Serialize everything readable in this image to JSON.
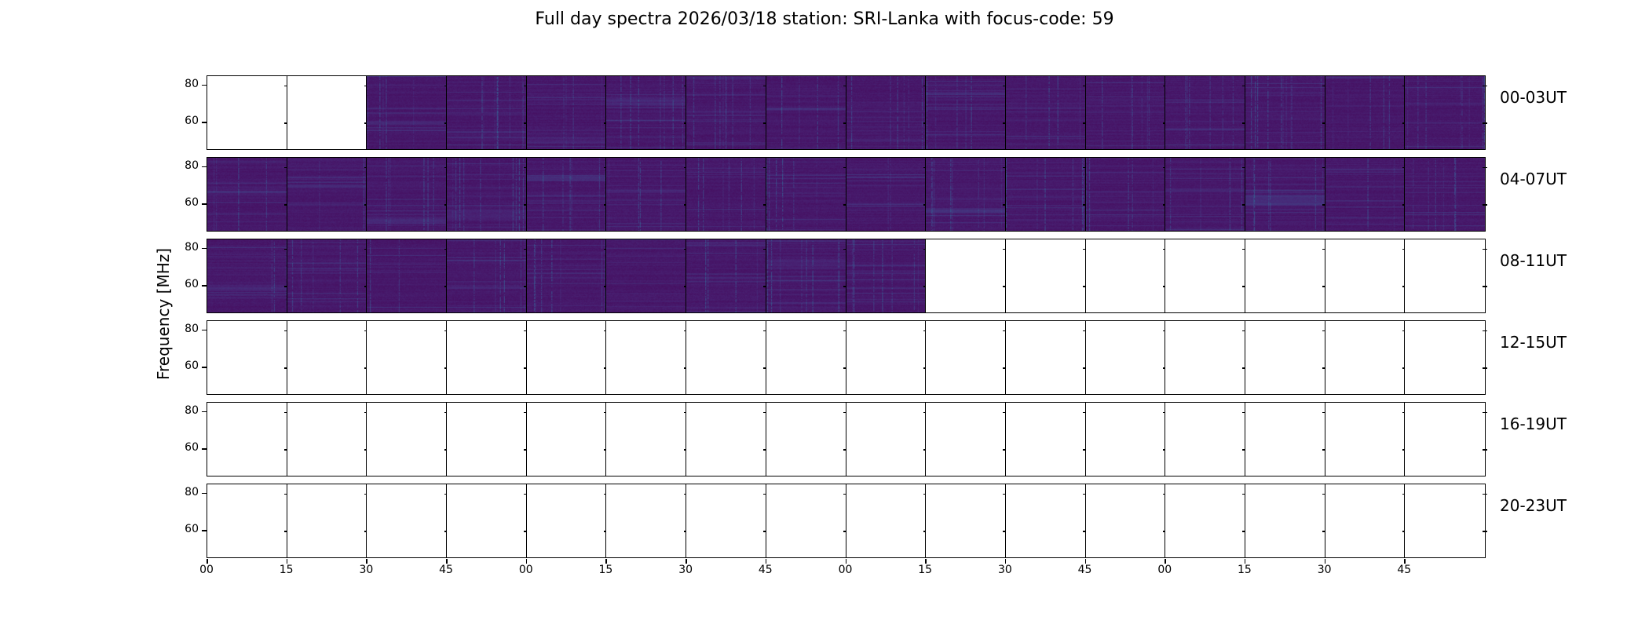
{
  "chart_data": {
    "type": "heatmap",
    "title": "Full day spectra 2026/03/18 station: SRI-Lanka with focus-code: 59",
    "ylabel": "Frequency [MHz]",
    "xlabel": "",
    "ylim": [
      45,
      85
    ],
    "yticks": [
      "80",
      "60"
    ],
    "xticks": [
      "00",
      "15",
      "30",
      "45",
      "00",
      "15",
      "30",
      "45",
      "00",
      "15",
      "30",
      "45",
      "00",
      "15",
      "30",
      "45"
    ],
    "colormap": "viridis",
    "rows": [
      {
        "label": "00-03UT",
        "has_data": [
          false,
          false,
          true,
          true,
          true,
          true,
          true,
          true,
          true,
          true,
          true,
          true,
          true,
          true,
          true,
          true
        ]
      },
      {
        "label": "04-07UT",
        "has_data": [
          true,
          true,
          true,
          true,
          true,
          true,
          true,
          true,
          true,
          true,
          true,
          true,
          true,
          true,
          true,
          true
        ]
      },
      {
        "label": "08-11UT",
        "has_data": [
          true,
          true,
          true,
          true,
          true,
          true,
          true,
          true,
          true,
          false,
          false,
          false,
          false,
          false,
          false,
          false
        ]
      },
      {
        "label": "12-15UT",
        "has_data": [
          false,
          false,
          false,
          false,
          false,
          false,
          false,
          false,
          false,
          false,
          false,
          false,
          false,
          false,
          false,
          false
        ]
      },
      {
        "label": "16-19UT",
        "has_data": [
          false,
          false,
          false,
          false,
          false,
          false,
          false,
          false,
          false,
          false,
          false,
          false,
          false,
          false,
          false,
          false
        ]
      },
      {
        "label": "20-23UT",
        "has_data": [
          false,
          false,
          false,
          false,
          false,
          false,
          false,
          false,
          false,
          false,
          false,
          false,
          false,
          false,
          false,
          false
        ]
      }
    ]
  }
}
